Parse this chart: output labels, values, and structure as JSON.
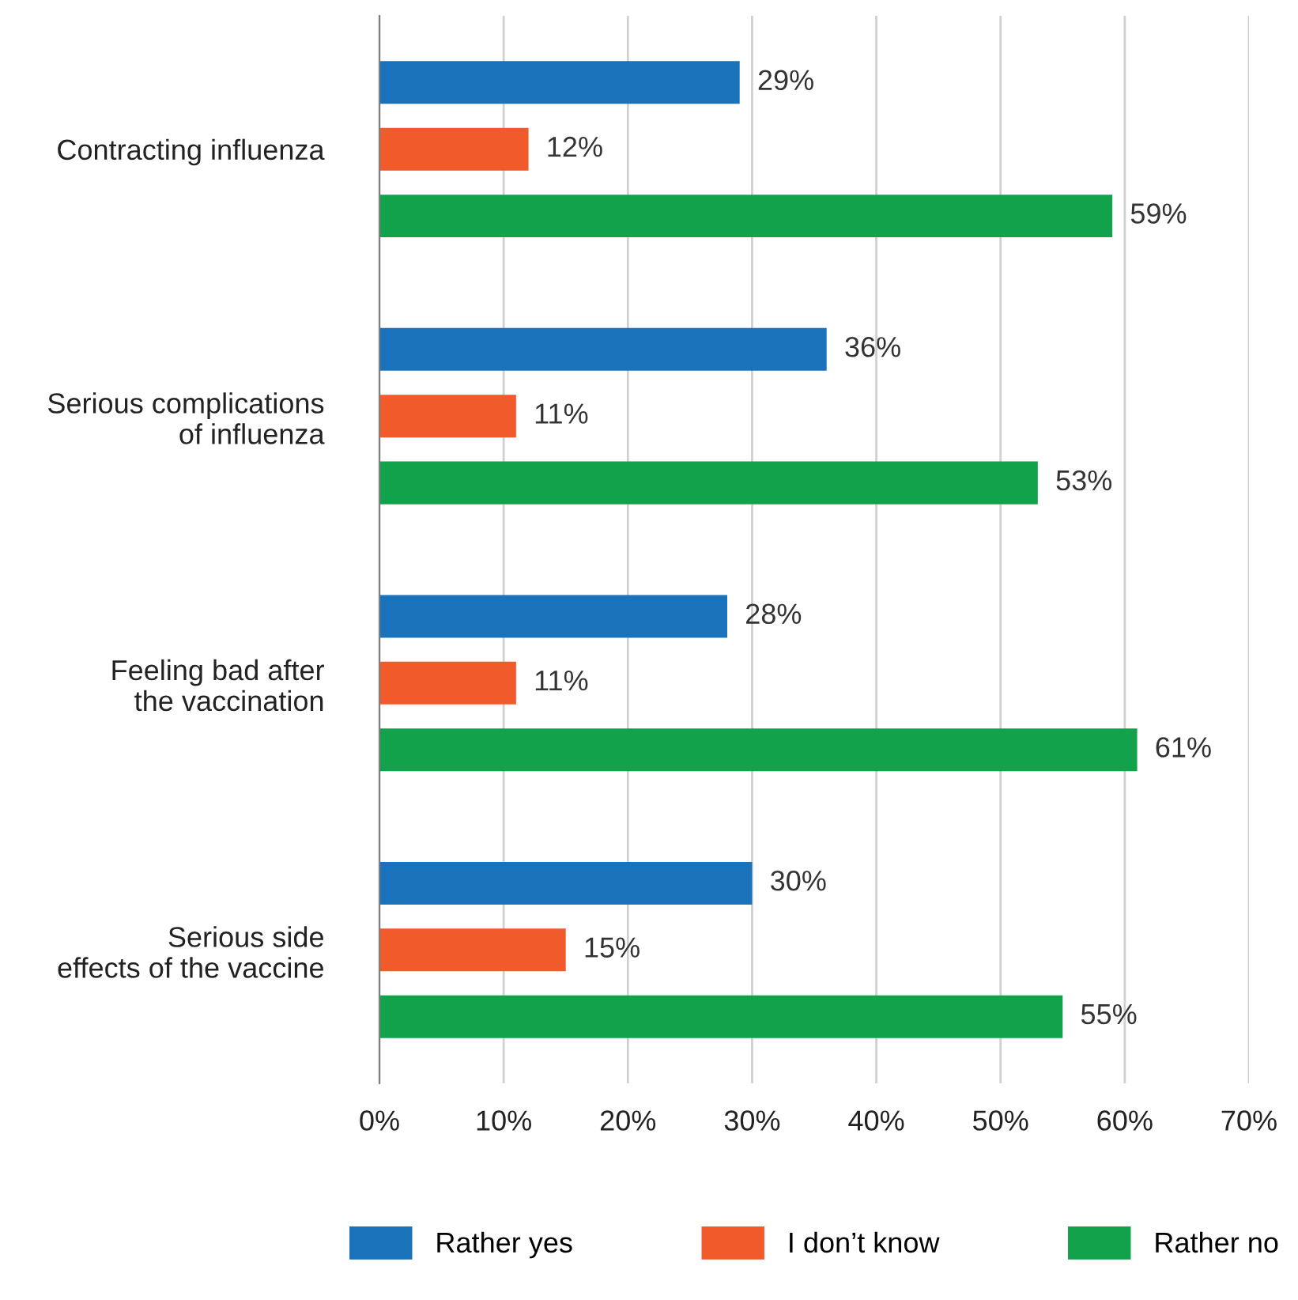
{
  "chart_data": {
    "type": "bar",
    "orientation": "horizontal",
    "categories": [
      "Contracting influenza",
      "Serious complications\nof influenza",
      "Feeling bad after\nthe vaccination",
      "Serious side\neffects of the vaccine"
    ],
    "series": [
      {
        "name": "Rather yes",
        "color": "#1a72bb",
        "values": [
          29,
          36,
          28,
          30
        ],
        "value_labels": [
          "29%",
          "36%",
          "28%",
          "30%"
        ]
      },
      {
        "name": "I don’t know",
        "color": "#f15a2b",
        "values": [
          12,
          11,
          11,
          15
        ],
        "value_labels": [
          "12%",
          "11%",
          "11%",
          "15%"
        ]
      },
      {
        "name": "Rather no",
        "color": "#12a24b",
        "values": [
          59,
          53,
          61,
          55
        ],
        "value_labels": [
          "59%",
          "53%",
          "61%",
          "55%"
        ]
      }
    ],
    "xlim": [
      0,
      70
    ],
    "xticks": [
      {
        "value": 0,
        "label": "0%"
      },
      {
        "value": 10,
        "label": "10%"
      },
      {
        "value": 20,
        "label": "20%"
      },
      {
        "value": 30,
        "label": "30%"
      },
      {
        "value": 40,
        "label": "40%"
      },
      {
        "value": 50,
        "label": "50%"
      },
      {
        "value": 60,
        "label": "60%"
      },
      {
        "value": 70,
        "label": "70%"
      }
    ],
    "grid": "x",
    "legend": "bottom"
  }
}
